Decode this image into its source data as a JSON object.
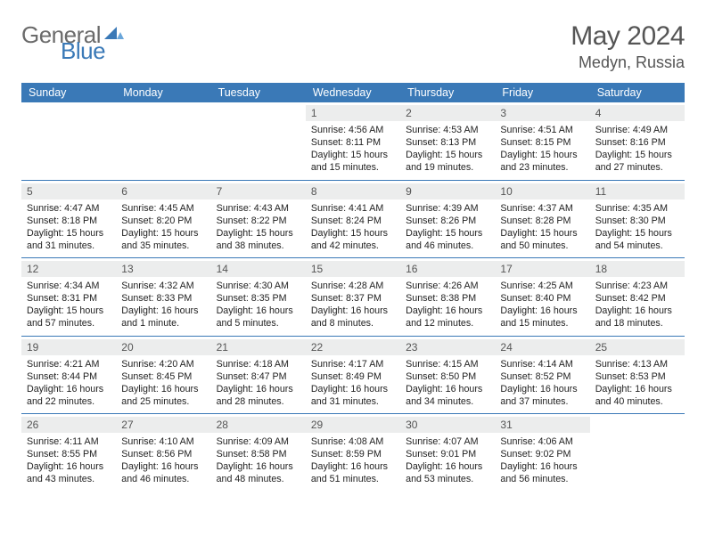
{
  "brand": {
    "name_a": "General",
    "name_b": "Blue"
  },
  "title": {
    "month": "May 2024",
    "location": "Medyn, Russia"
  },
  "colors": {
    "header_bg": "#3a79b7",
    "header_text": "#ffffff",
    "daynum_bg": "#eceded",
    "text": "#222222",
    "rule": "#3a79b7"
  },
  "daysOfWeek": [
    "Sunday",
    "Monday",
    "Tuesday",
    "Wednesday",
    "Thursday",
    "Friday",
    "Saturday"
  ],
  "weeks": [
    [
      null,
      null,
      null,
      {
        "n": "1",
        "sr": "4:56 AM",
        "ss": "8:11 PM",
        "dl": "15 hours and 15 minutes."
      },
      {
        "n": "2",
        "sr": "4:53 AM",
        "ss": "8:13 PM",
        "dl": "15 hours and 19 minutes."
      },
      {
        "n": "3",
        "sr": "4:51 AM",
        "ss": "8:15 PM",
        "dl": "15 hours and 23 minutes."
      },
      {
        "n": "4",
        "sr": "4:49 AM",
        "ss": "8:16 PM",
        "dl": "15 hours and 27 minutes."
      }
    ],
    [
      {
        "n": "5",
        "sr": "4:47 AM",
        "ss": "8:18 PM",
        "dl": "15 hours and 31 minutes."
      },
      {
        "n": "6",
        "sr": "4:45 AM",
        "ss": "8:20 PM",
        "dl": "15 hours and 35 minutes."
      },
      {
        "n": "7",
        "sr": "4:43 AM",
        "ss": "8:22 PM",
        "dl": "15 hours and 38 minutes."
      },
      {
        "n": "8",
        "sr": "4:41 AM",
        "ss": "8:24 PM",
        "dl": "15 hours and 42 minutes."
      },
      {
        "n": "9",
        "sr": "4:39 AM",
        "ss": "8:26 PM",
        "dl": "15 hours and 46 minutes."
      },
      {
        "n": "10",
        "sr": "4:37 AM",
        "ss": "8:28 PM",
        "dl": "15 hours and 50 minutes."
      },
      {
        "n": "11",
        "sr": "4:35 AM",
        "ss": "8:30 PM",
        "dl": "15 hours and 54 minutes."
      }
    ],
    [
      {
        "n": "12",
        "sr": "4:34 AM",
        "ss": "8:31 PM",
        "dl": "15 hours and 57 minutes."
      },
      {
        "n": "13",
        "sr": "4:32 AM",
        "ss": "8:33 PM",
        "dl": "16 hours and 1 minute."
      },
      {
        "n": "14",
        "sr": "4:30 AM",
        "ss": "8:35 PM",
        "dl": "16 hours and 5 minutes."
      },
      {
        "n": "15",
        "sr": "4:28 AM",
        "ss": "8:37 PM",
        "dl": "16 hours and 8 minutes."
      },
      {
        "n": "16",
        "sr": "4:26 AM",
        "ss": "8:38 PM",
        "dl": "16 hours and 12 minutes."
      },
      {
        "n": "17",
        "sr": "4:25 AM",
        "ss": "8:40 PM",
        "dl": "16 hours and 15 minutes."
      },
      {
        "n": "18",
        "sr": "4:23 AM",
        "ss": "8:42 PM",
        "dl": "16 hours and 18 minutes."
      }
    ],
    [
      {
        "n": "19",
        "sr": "4:21 AM",
        "ss": "8:44 PM",
        "dl": "16 hours and 22 minutes."
      },
      {
        "n": "20",
        "sr": "4:20 AM",
        "ss": "8:45 PM",
        "dl": "16 hours and 25 minutes."
      },
      {
        "n": "21",
        "sr": "4:18 AM",
        "ss": "8:47 PM",
        "dl": "16 hours and 28 minutes."
      },
      {
        "n": "22",
        "sr": "4:17 AM",
        "ss": "8:49 PM",
        "dl": "16 hours and 31 minutes."
      },
      {
        "n": "23",
        "sr": "4:15 AM",
        "ss": "8:50 PM",
        "dl": "16 hours and 34 minutes."
      },
      {
        "n": "24",
        "sr": "4:14 AM",
        "ss": "8:52 PM",
        "dl": "16 hours and 37 minutes."
      },
      {
        "n": "25",
        "sr": "4:13 AM",
        "ss": "8:53 PM",
        "dl": "16 hours and 40 minutes."
      }
    ],
    [
      {
        "n": "26",
        "sr": "4:11 AM",
        "ss": "8:55 PM",
        "dl": "16 hours and 43 minutes."
      },
      {
        "n": "27",
        "sr": "4:10 AM",
        "ss": "8:56 PM",
        "dl": "16 hours and 46 minutes."
      },
      {
        "n": "28",
        "sr": "4:09 AM",
        "ss": "8:58 PM",
        "dl": "16 hours and 48 minutes."
      },
      {
        "n": "29",
        "sr": "4:08 AM",
        "ss": "8:59 PM",
        "dl": "16 hours and 51 minutes."
      },
      {
        "n": "30",
        "sr": "4:07 AM",
        "ss": "9:01 PM",
        "dl": "16 hours and 53 minutes."
      },
      {
        "n": "31",
        "sr": "4:06 AM",
        "ss": "9:02 PM",
        "dl": "16 hours and 56 minutes."
      },
      null
    ]
  ],
  "labels": {
    "sunrise": "Sunrise: ",
    "sunset": "Sunset: ",
    "daylight": "Daylight: "
  }
}
